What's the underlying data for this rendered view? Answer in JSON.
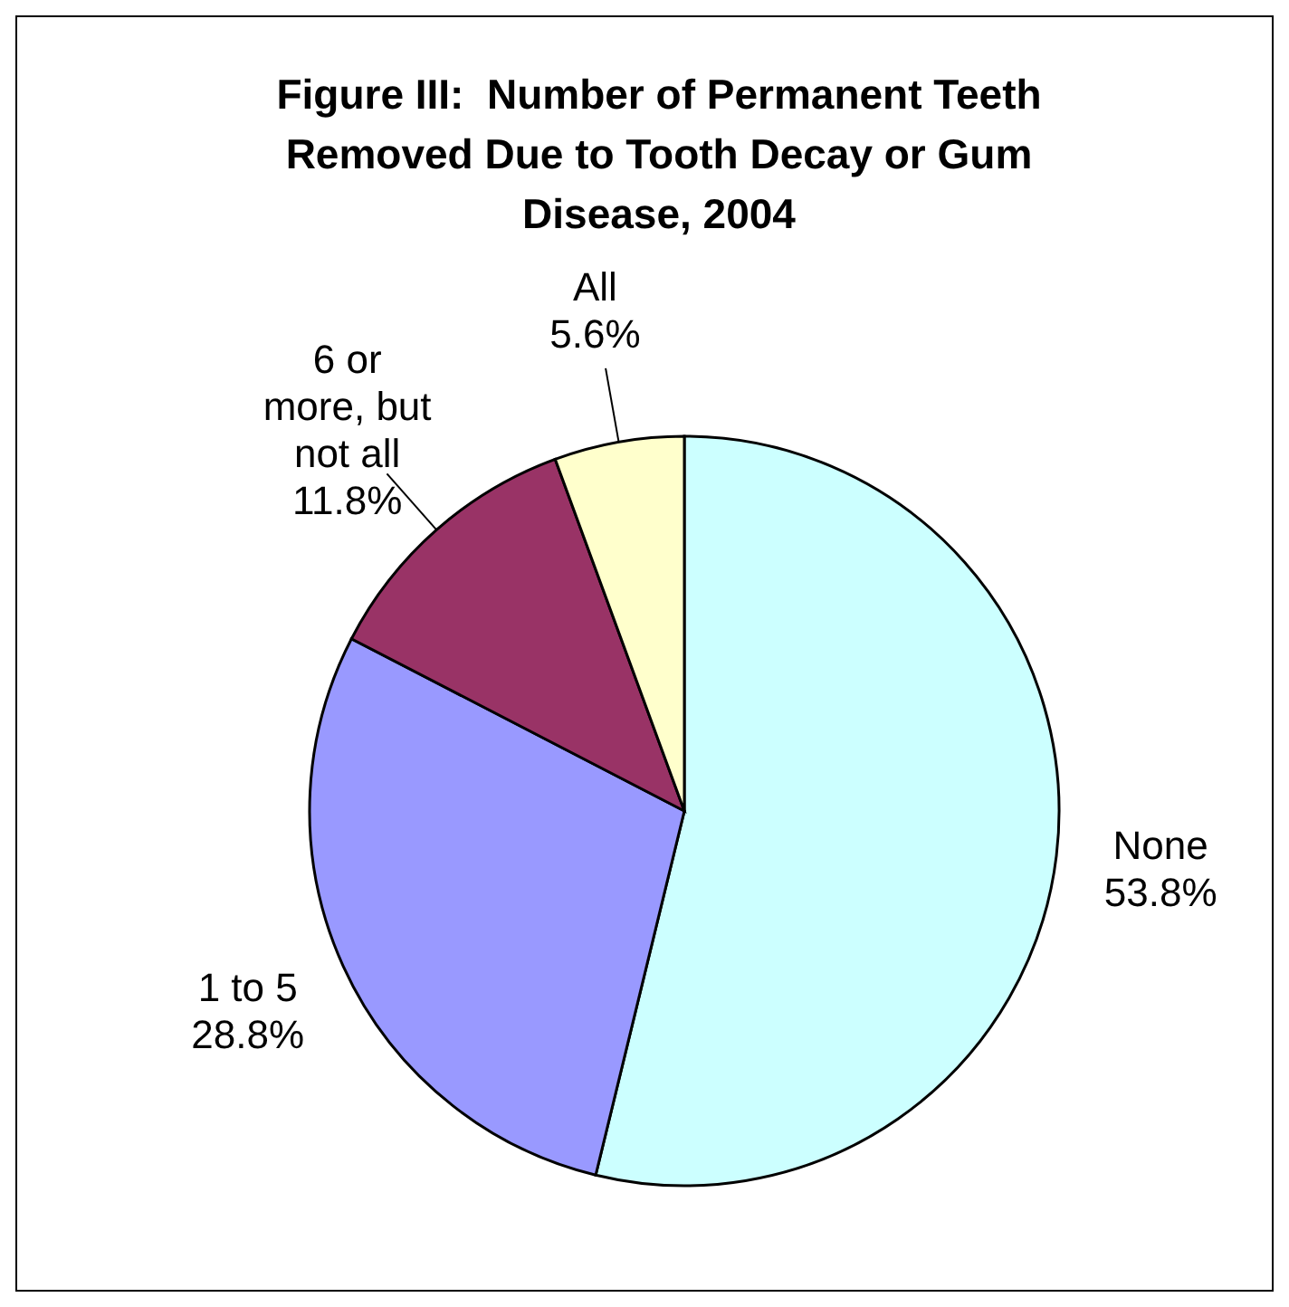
{
  "chart_data": {
    "type": "pie",
    "title": "Figure III:  Number of Permanent Teeth Removed Due to Tooth Decay or Gum Disease, 2004",
    "categories": [
      "None",
      "1 to 5",
      "6 or more, but not all",
      "All"
    ],
    "values": [
      53.8,
      28.8,
      11.8,
      5.6
    ],
    "value_labels": [
      "53.8%",
      "28.8%",
      "11.8%",
      "5.6%"
    ],
    "colors": [
      "#ccffff",
      "#9999ff",
      "#993366",
      "#ffffcc"
    ]
  }
}
